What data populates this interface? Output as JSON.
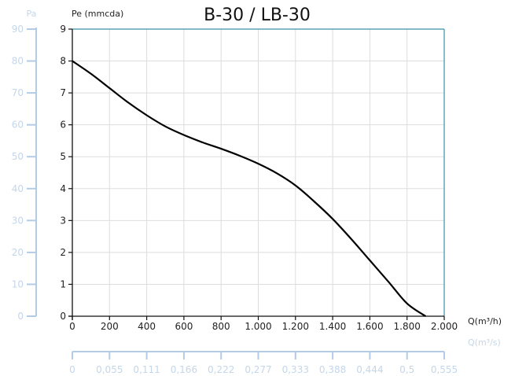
{
  "chart_data": {
    "type": "line",
    "title": "B-30 / LB-30",
    "ylabel": "Pe (mmcda)",
    "ylabel_secondary": "Pa",
    "xlabel": "Q(m³/h)",
    "xlabel_secondary": "Q(m³/s)",
    "xlim": [
      0,
      2000
    ],
    "ylim": [
      0,
      9
    ],
    "grid": true,
    "x_ticks": [
      "0",
      "200",
      "400",
      "600",
      "800",
      "1.000",
      "1.200",
      "1.400",
      "1.600",
      "1.800",
      "2.000"
    ],
    "y_ticks": [
      "0",
      "1",
      "2",
      "3",
      "4",
      "5",
      "6",
      "7",
      "8",
      "9"
    ],
    "y2_ticks": [
      "0",
      "10",
      "20",
      "30",
      "40",
      "50",
      "60",
      "70",
      "80",
      "90"
    ],
    "x2_ticks": [
      "0",
      "0,055",
      "0,111",
      "0,166",
      "0,222",
      "0,277",
      "0,333",
      "0,388",
      "0,444",
      "0,5",
      "0,555"
    ],
    "series": [
      {
        "color": "#000000",
        "x": [
          0,
          100,
          200,
          300,
          400,
          500,
          600,
          700,
          800,
          900,
          1000,
          1100,
          1200,
          1300,
          1400,
          1500,
          1600,
          1700,
          1800,
          1900
        ],
        "y": [
          8.0,
          7.6,
          7.15,
          6.7,
          6.3,
          5.95,
          5.68,
          5.45,
          5.25,
          5.03,
          4.78,
          4.48,
          4.1,
          3.6,
          3.05,
          2.42,
          1.75,
          1.08,
          0.4,
          0
        ]
      }
    ],
    "colors": {
      "axis": "#111111",
      "grid": "#dddddd",
      "secondary_axis": "#b3cbe5",
      "frame_accent": "#3a8fa8"
    }
  }
}
